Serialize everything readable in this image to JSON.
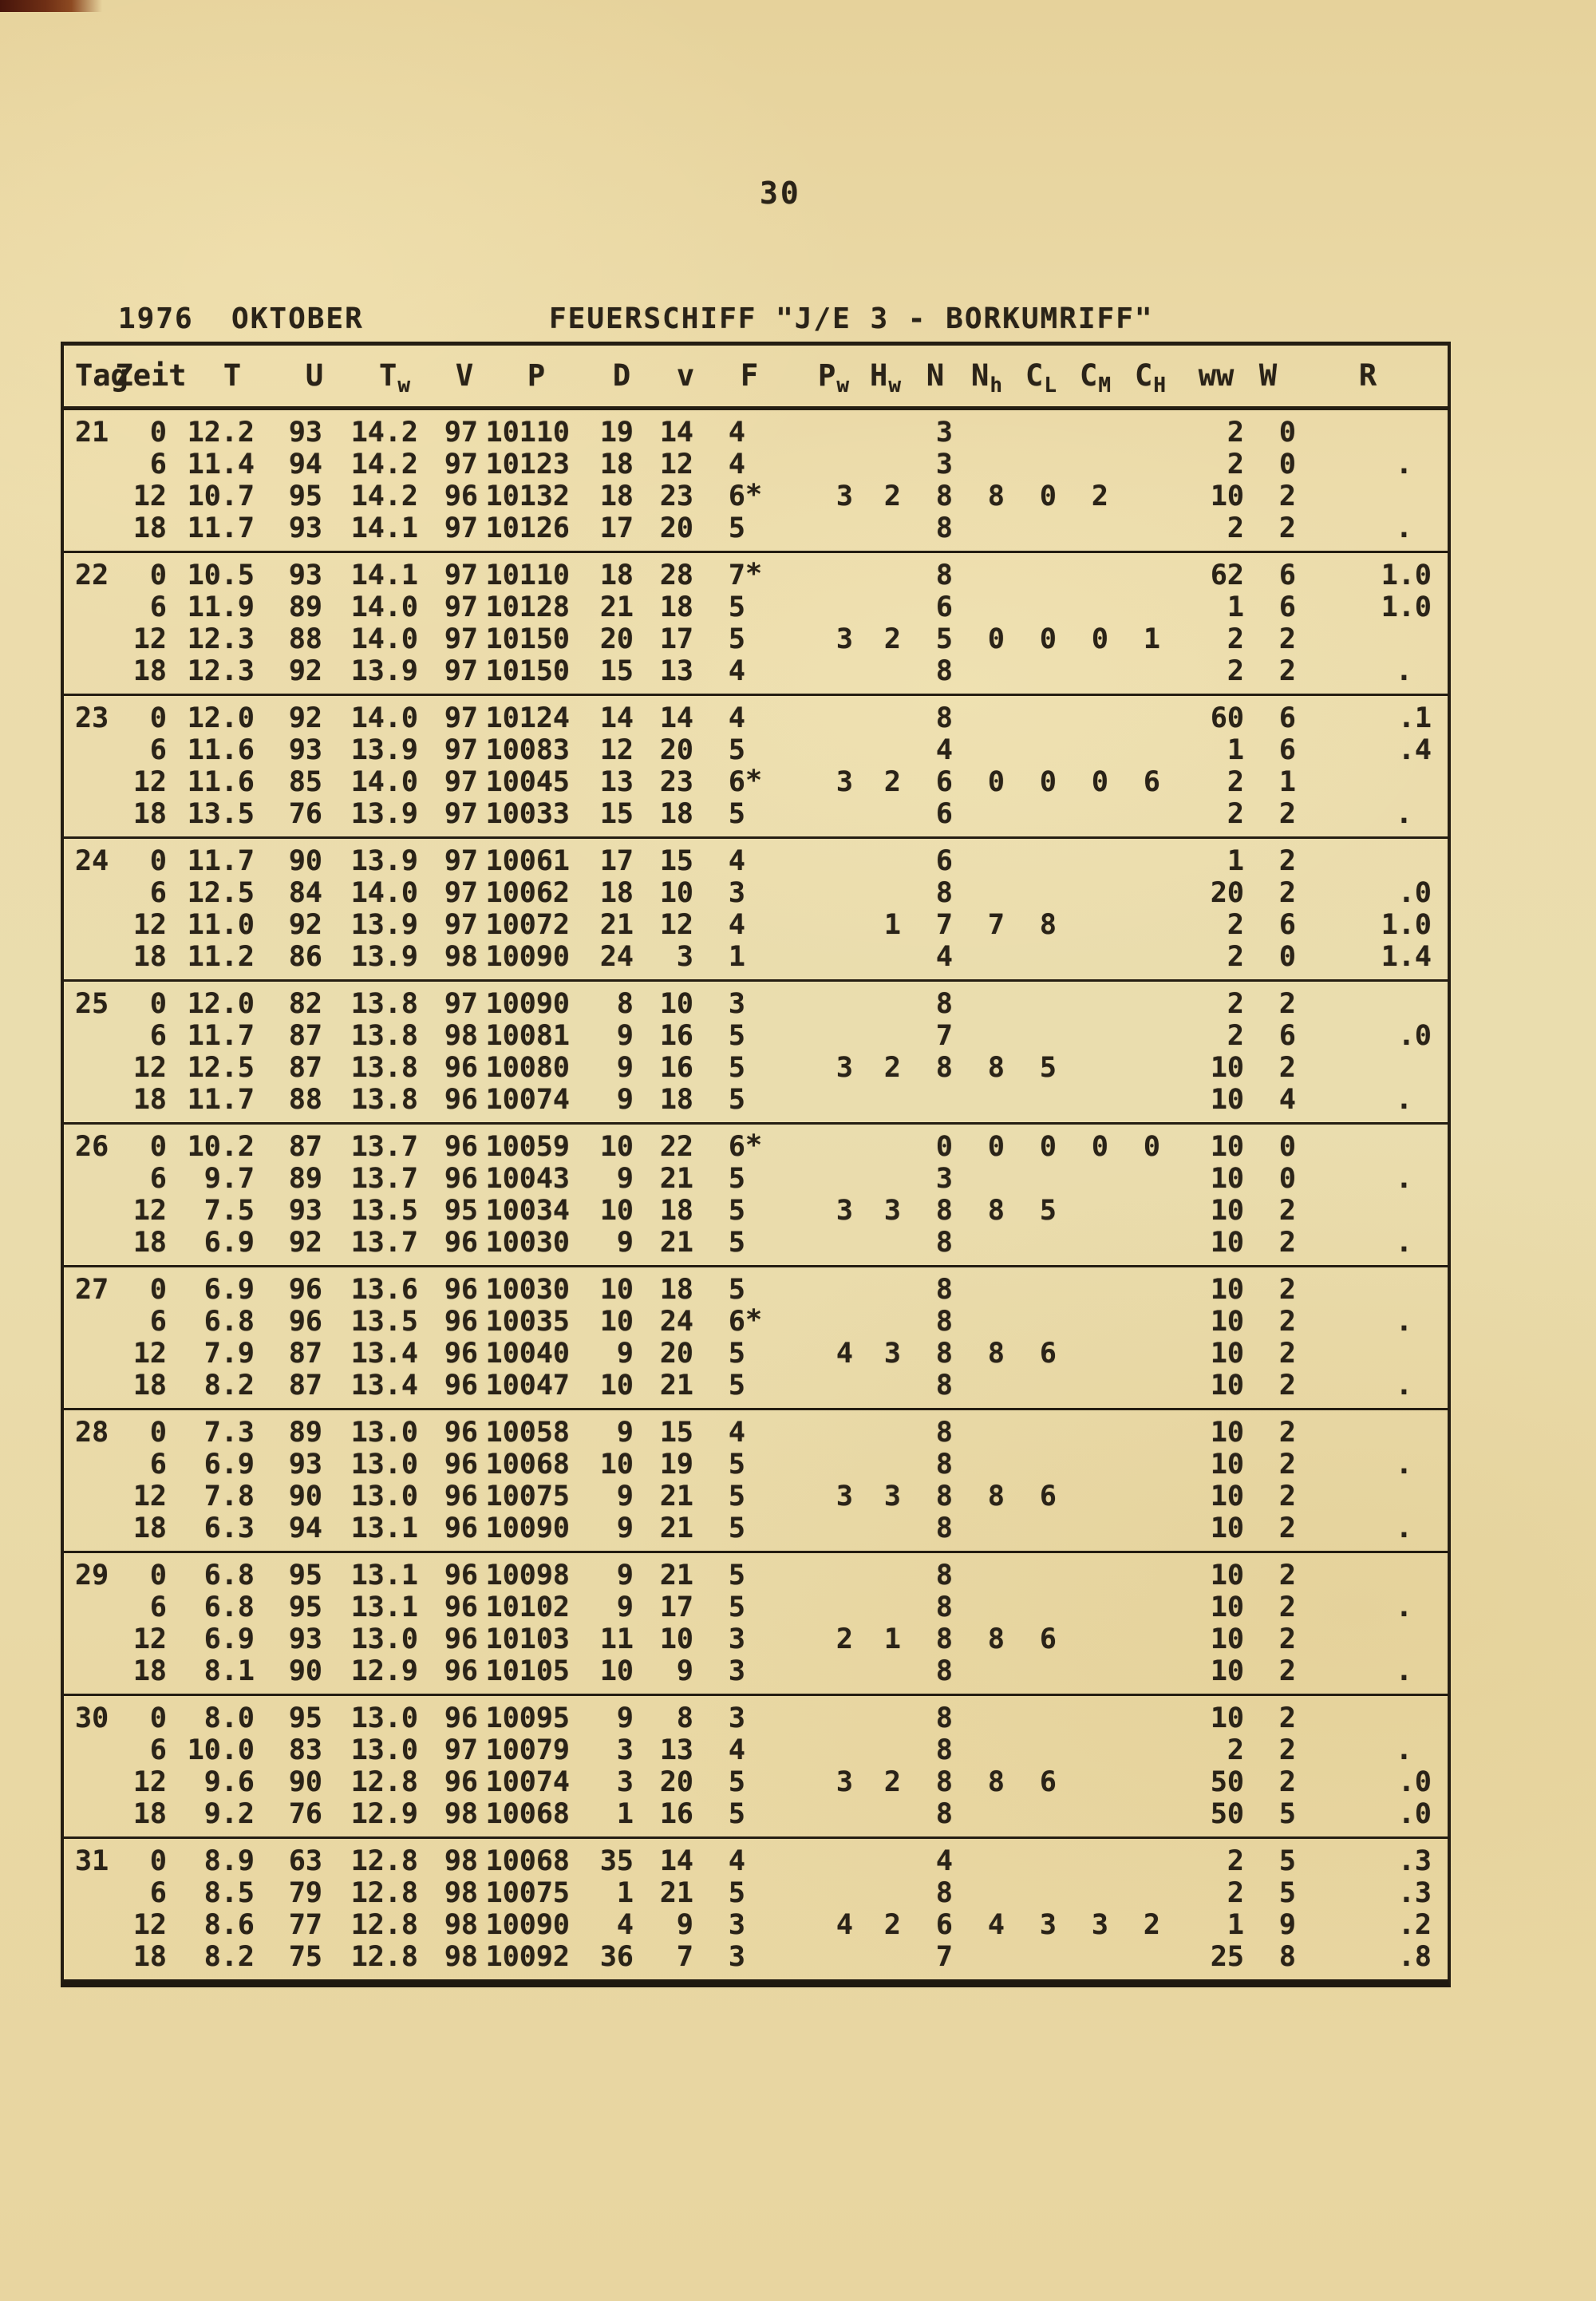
{
  "page": {
    "number": "30"
  },
  "header": {
    "date_line": "1976  OKTOBER",
    "station_line": "FEUERSCHIFF \"J/E 3 - BORKUMRIFF\""
  },
  "table": {
    "columns": [
      {
        "key": "tag",
        "main": "Tag",
        "sub": ""
      },
      {
        "key": "zeit",
        "main": "Zeit",
        "sub": ""
      },
      {
        "key": "t",
        "main": "T",
        "sub": ""
      },
      {
        "key": "u",
        "main": "U",
        "sub": ""
      },
      {
        "key": "tw",
        "main": "T",
        "sub": "w"
      },
      {
        "key": "v",
        "main": "V",
        "sub": ""
      },
      {
        "key": "p",
        "main": "P",
        "sub": ""
      },
      {
        "key": "d",
        "main": "D",
        "sub": ""
      },
      {
        "key": "vv",
        "main": "v",
        "sub": ""
      },
      {
        "key": "f",
        "main": "F",
        "sub": ""
      },
      {
        "key": "pw",
        "main": "P",
        "sub": "w"
      },
      {
        "key": "hw",
        "main": "H",
        "sub": "w"
      },
      {
        "key": "n",
        "main": "N",
        "sub": ""
      },
      {
        "key": "nh",
        "main": "N",
        "sub": "h"
      },
      {
        "key": "cl",
        "main": "C",
        "sub": "L"
      },
      {
        "key": "cm",
        "main": "C",
        "sub": "M"
      },
      {
        "key": "ch",
        "main": "C",
        "sub": "H"
      },
      {
        "key": "ww",
        "main": "ww",
        "sub": ""
      },
      {
        "key": "w",
        "main": "W",
        "sub": ""
      },
      {
        "key": "r",
        "main": "R",
        "sub": ""
      }
    ],
    "days": [
      {
        "day": "21",
        "rows": [
          [
            "0",
            "12.2",
            "93",
            "14.2",
            "97",
            "10110",
            "19",
            "14",
            "4",
            "",
            "",
            "3",
            "",
            "",
            "",
            "",
            "2",
            "0",
            ""
          ],
          [
            "6",
            "11.4",
            "94",
            "14.2",
            "97",
            "10123",
            "18",
            "12",
            "4",
            "",
            "",
            "3",
            "",
            "",
            "",
            "",
            "2",
            "0",
            "."
          ],
          [
            "12",
            "10.7",
            "95",
            "14.2",
            "96",
            "10132",
            "18",
            "23",
            "6*",
            "3",
            "2",
            "8",
            "8",
            "0",
            "2",
            "",
            "10",
            "2",
            ""
          ],
          [
            "18",
            "11.7",
            "93",
            "14.1",
            "97",
            "10126",
            "17",
            "20",
            "5",
            "",
            "",
            "8",
            "",
            "",
            "",
            "",
            "2",
            "2",
            "."
          ]
        ]
      },
      {
        "day": "22",
        "rows": [
          [
            "0",
            "10.5",
            "93",
            "14.1",
            "97",
            "10110",
            "18",
            "28",
            "7*",
            "",
            "",
            "8",
            "",
            "",
            "",
            "",
            "62",
            "6",
            "1.0"
          ],
          [
            "6",
            "11.9",
            "89",
            "14.0",
            "97",
            "10128",
            "21",
            "18",
            "5",
            "",
            "",
            "6",
            "",
            "",
            "",
            "",
            "1",
            "6",
            "1.0"
          ],
          [
            "12",
            "12.3",
            "88",
            "14.0",
            "97",
            "10150",
            "20",
            "17",
            "5",
            "3",
            "2",
            "5",
            "0",
            "0",
            "0",
            "1",
            "2",
            "2",
            ""
          ],
          [
            "18",
            "12.3",
            "92",
            "13.9",
            "97",
            "10150",
            "15",
            "13",
            "4",
            "",
            "",
            "8",
            "",
            "",
            "",
            "",
            "2",
            "2",
            "."
          ]
        ]
      },
      {
        "day": "23",
        "rows": [
          [
            "0",
            "12.0",
            "92",
            "14.0",
            "97",
            "10124",
            "14",
            "14",
            "4",
            "",
            "",
            "8",
            "",
            "",
            "",
            "",
            "60",
            "6",
            ".1"
          ],
          [
            "6",
            "11.6",
            "93",
            "13.9",
            "97",
            "10083",
            "12",
            "20",
            "5",
            "",
            "",
            "4",
            "",
            "",
            "",
            "",
            "1",
            "6",
            ".4"
          ],
          [
            "12",
            "11.6",
            "85",
            "14.0",
            "97",
            "10045",
            "13",
            "23",
            "6*",
            "3",
            "2",
            "6",
            "0",
            "0",
            "0",
            "6",
            "2",
            "1",
            ""
          ],
          [
            "18",
            "13.5",
            "76",
            "13.9",
            "97",
            "10033",
            "15",
            "18",
            "5",
            "",
            "",
            "6",
            "",
            "",
            "",
            "",
            "2",
            "2",
            "."
          ]
        ]
      },
      {
        "day": "24",
        "rows": [
          [
            "0",
            "11.7",
            "90",
            "13.9",
            "97",
            "10061",
            "17",
            "15",
            "4",
            "",
            "",
            "6",
            "",
            "",
            "",
            "",
            "1",
            "2",
            ""
          ],
          [
            "6",
            "12.5",
            "84",
            "14.0",
            "97",
            "10062",
            "18",
            "10",
            "3",
            "",
            "",
            "8",
            "",
            "",
            "",
            "",
            "20",
            "2",
            ".0"
          ],
          [
            "12",
            "11.0",
            "92",
            "13.9",
            "97",
            "10072",
            "21",
            "12",
            "4",
            "",
            "1",
            "7",
            "7",
            "8",
            "",
            "",
            "2",
            "6",
            "1.0"
          ],
          [
            "18",
            "11.2",
            "86",
            "13.9",
            "98",
            "10090",
            "24",
            "3",
            "1",
            "",
            "",
            "4",
            "",
            "",
            "",
            "",
            "2",
            "0",
            "1.4"
          ]
        ]
      },
      {
        "day": "25",
        "rows": [
          [
            "0",
            "12.0",
            "82",
            "13.8",
            "97",
            "10090",
            "8",
            "10",
            "3",
            "",
            "",
            "8",
            "",
            "",
            "",
            "",
            "2",
            "2",
            ""
          ],
          [
            "6",
            "11.7",
            "87",
            "13.8",
            "98",
            "10081",
            "9",
            "16",
            "5",
            "",
            "",
            "7",
            "",
            "",
            "",
            "",
            "2",
            "6",
            ".0"
          ],
          [
            "12",
            "12.5",
            "87",
            "13.8",
            "96",
            "10080",
            "9",
            "16",
            "5",
            "3",
            "2",
            "8",
            "8",
            "5",
            "",
            "",
            "10",
            "2",
            ""
          ],
          [
            "18",
            "11.7",
            "88",
            "13.8",
            "96",
            "10074",
            "9",
            "18",
            "5",
            "",
            "",
            "",
            "",
            "",
            "",
            "",
            "10",
            "4",
            "."
          ]
        ]
      },
      {
        "day": "26",
        "rows": [
          [
            "0",
            "10.2",
            "87",
            "13.7",
            "96",
            "10059",
            "10",
            "22",
            "6*",
            "",
            "",
            "0",
            "0",
            "0",
            "0",
            "0",
            "10",
            "0",
            ""
          ],
          [
            "6",
            "9.7",
            "89",
            "13.7",
            "96",
            "10043",
            "9",
            "21",
            "5",
            "",
            "",
            "3",
            "",
            "",
            "",
            "",
            "10",
            "0",
            "."
          ],
          [
            "12",
            "7.5",
            "93",
            "13.5",
            "95",
            "10034",
            "10",
            "18",
            "5",
            "3",
            "3",
            "8",
            "8",
            "5",
            "",
            "",
            "10",
            "2",
            ""
          ],
          [
            "18",
            "6.9",
            "92",
            "13.7",
            "96",
            "10030",
            "9",
            "21",
            "5",
            "",
            "",
            "8",
            "",
            "",
            "",
            "",
            "10",
            "2",
            "."
          ]
        ]
      },
      {
        "day": "27",
        "rows": [
          [
            "0",
            "6.9",
            "96",
            "13.6",
            "96",
            "10030",
            "10",
            "18",
            "5",
            "",
            "",
            "8",
            "",
            "",
            "",
            "",
            "10",
            "2",
            ""
          ],
          [
            "6",
            "6.8",
            "96",
            "13.5",
            "96",
            "10035",
            "10",
            "24",
            "6*",
            "",
            "",
            "8",
            "",
            "",
            "",
            "",
            "10",
            "2",
            "."
          ],
          [
            "12",
            "7.9",
            "87",
            "13.4",
            "96",
            "10040",
            "9",
            "20",
            "5",
            "4",
            "3",
            "8",
            "8",
            "6",
            "",
            "",
            "10",
            "2",
            ""
          ],
          [
            "18",
            "8.2",
            "87",
            "13.4",
            "96",
            "10047",
            "10",
            "21",
            "5",
            "",
            "",
            "8",
            "",
            "",
            "",
            "",
            "10",
            "2",
            "."
          ]
        ]
      },
      {
        "day": "28",
        "rows": [
          [
            "0",
            "7.3",
            "89",
            "13.0",
            "96",
            "10058",
            "9",
            "15",
            "4",
            "",
            "",
            "8",
            "",
            "",
            "",
            "",
            "10",
            "2",
            ""
          ],
          [
            "6",
            "6.9",
            "93",
            "13.0",
            "96",
            "10068",
            "10",
            "19",
            "5",
            "",
            "",
            "8",
            "",
            "",
            "",
            "",
            "10",
            "2",
            "."
          ],
          [
            "12",
            "7.8",
            "90",
            "13.0",
            "96",
            "10075",
            "9",
            "21",
            "5",
            "3",
            "3",
            "8",
            "8",
            "6",
            "",
            "",
            "10",
            "2",
            ""
          ],
          [
            "18",
            "6.3",
            "94",
            "13.1",
            "96",
            "10090",
            "9",
            "21",
            "5",
            "",
            "",
            "8",
            "",
            "",
            "",
            "",
            "10",
            "2",
            "."
          ]
        ]
      },
      {
        "day": "29",
        "rows": [
          [
            "0",
            "6.8",
            "95",
            "13.1",
            "96",
            "10098",
            "9",
            "21",
            "5",
            "",
            "",
            "8",
            "",
            "",
            "",
            "",
            "10",
            "2",
            ""
          ],
          [
            "6",
            "6.8",
            "95",
            "13.1",
            "96",
            "10102",
            "9",
            "17",
            "5",
            "",
            "",
            "8",
            "",
            "",
            "",
            "",
            "10",
            "2",
            "."
          ],
          [
            "12",
            "6.9",
            "93",
            "13.0",
            "96",
            "10103",
            "11",
            "10",
            "3",
            "2",
            "1",
            "8",
            "8",
            "6",
            "",
            "",
            "10",
            "2",
            ""
          ],
          [
            "18",
            "8.1",
            "90",
            "12.9",
            "96",
            "10105",
            "10",
            "9",
            "3",
            "",
            "",
            "8",
            "",
            "",
            "",
            "",
            "10",
            "2",
            "."
          ]
        ]
      },
      {
        "day": "30",
        "rows": [
          [
            "0",
            "8.0",
            "95",
            "13.0",
            "96",
            "10095",
            "9",
            "8",
            "3",
            "",
            "",
            "8",
            "",
            "",
            "",
            "",
            "10",
            "2",
            ""
          ],
          [
            "6",
            "10.0",
            "83",
            "13.0",
            "97",
            "10079",
            "3",
            "13",
            "4",
            "",
            "",
            "8",
            "",
            "",
            "",
            "",
            "2",
            "2",
            "."
          ],
          [
            "12",
            "9.6",
            "90",
            "12.8",
            "96",
            "10074",
            "3",
            "20",
            "5",
            "3",
            "2",
            "8",
            "8",
            "6",
            "",
            "",
            "50",
            "2",
            ".0"
          ],
          [
            "18",
            "9.2",
            "76",
            "12.9",
            "98",
            "10068",
            "1",
            "16",
            "5",
            "",
            "",
            "8",
            "",
            "",
            "",
            "",
            "50",
            "5",
            ".0"
          ]
        ]
      },
      {
        "day": "31",
        "rows": [
          [
            "0",
            "8.9",
            "63",
            "12.8",
            "98",
            "10068",
            "35",
            "14",
            "4",
            "",
            "",
            "4",
            "",
            "",
            "",
            "",
            "2",
            "5",
            ".3"
          ],
          [
            "6",
            "8.5",
            "79",
            "12.8",
            "98",
            "10075",
            "1",
            "21",
            "5",
            "",
            "",
            "8",
            "",
            "",
            "",
            "",
            "2",
            "5",
            ".3"
          ],
          [
            "12",
            "8.6",
            "77",
            "12.8",
            "98",
            "10090",
            "4",
            "9",
            "3",
            "4",
            "2",
            "6",
            "4",
            "3",
            "3",
            "2",
            "1",
            "9",
            ".2"
          ],
          [
            "18",
            "8.2",
            "75",
            "12.8",
            "98",
            "10092",
            "36",
            "7",
            "3",
            "",
            "",
            "7",
            "",
            "",
            "",
            "",
            "25",
            "8",
            ".8"
          ]
        ]
      }
    ]
  }
}
